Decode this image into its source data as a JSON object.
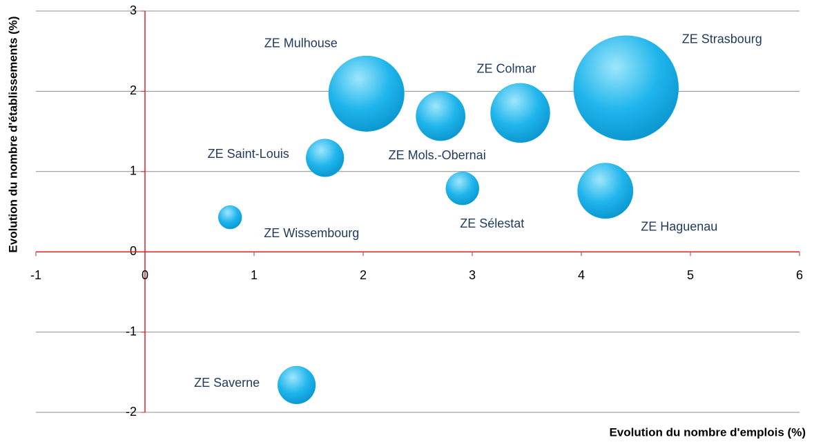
{
  "chart_data": {
    "type": "bubble",
    "x_label": "Evolution du nombre d'emplois (%)",
    "y_label": "Evolution du nombre d'établissements (%)",
    "labels": [
      "ZE Mulhouse",
      "ZE Mols.-Obernai",
      "ZE Colmar",
      "ZE Strasbourg",
      "ZE Saint-Louis",
      "ZE Sélestat",
      "ZE Haguenau",
      "ZE Wissembourg",
      "ZE Saverne"
    ],
    "x": [
      2.03,
      2.71,
      3.44,
      4.41,
      1.65,
      2.91,
      4.22,
      0.78,
      1.39
    ],
    "y": [
      1.97,
      1.69,
      1.73,
      2.04,
      1.17,
      0.79,
      0.76,
      0.43,
      -1.66
    ],
    "sizes": [
      52,
      22,
      32,
      100,
      13,
      10,
      28,
      5,
      13
    ],
    "color": "#19aee6",
    "xlim": [
      -1,
      6
    ],
    "xticks": [
      -1,
      0,
      1,
      2,
      3,
      4,
      5,
      6
    ],
    "ylim": [
      -2,
      3
    ],
    "yticks": [
      -2,
      -1,
      0,
      1,
      2,
      3
    ],
    "grid": true
  }
}
